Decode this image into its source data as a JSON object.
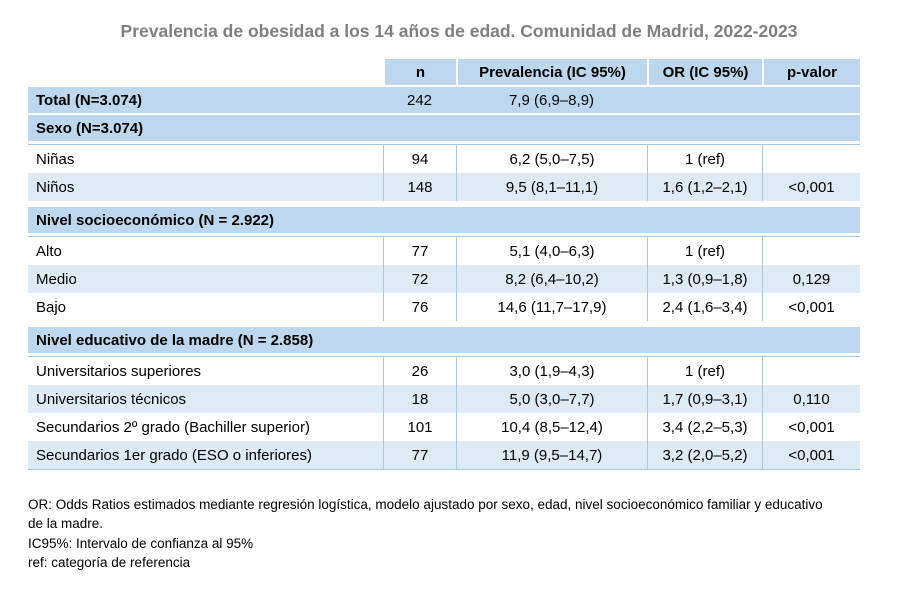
{
  "title": "Prevalencia de obesidad a los 14 años de edad. Comunidad de Madrid, 2022-2023",
  "chart_data": {
    "type": "table",
    "title": "Prevalencia de obesidad a los 14 años de edad. Comunidad de Madrid, 2022-2023",
    "columns": [
      "",
      "n",
      "Prevalencia (IC 95%)",
      "OR (IC 95%)",
      "p-valor"
    ],
    "rows": [
      {
        "type": "total",
        "label": "Total (N=3.074)",
        "n": "242",
        "prev": "7,9 (6,9–8,9)",
        "or": "",
        "p": ""
      },
      {
        "type": "section",
        "label": "Sexo (N=3.074)"
      },
      {
        "type": "data",
        "label": "Niñas",
        "n": "94",
        "prev": "6,2 (5,0–7,5)",
        "or": "1 (ref)",
        "p": ""
      },
      {
        "type": "data",
        "label": "Niños",
        "n": "148",
        "prev": "9,5 (8,1–11,1)",
        "or": "1,6 (1,2–2,1)",
        "p": "<0,001"
      },
      {
        "type": "section",
        "label": "Nivel socioeconómico (N = 2.922)"
      },
      {
        "type": "data",
        "label": "Alto",
        "n": "77",
        "prev": "5,1 (4,0–6,3)",
        "or": "1 (ref)",
        "p": ""
      },
      {
        "type": "data",
        "label": "Medio",
        "n": "72",
        "prev": "8,2 (6,4–10,2)",
        "or": "1,3 (0,9–1,8)",
        "p": "0,129"
      },
      {
        "type": "data",
        "label": "Bajo",
        "n": "76",
        "prev": "14,6 (11,7–17,9)",
        "or": "2,4 (1,6–3,4)",
        "p": "<0,001"
      },
      {
        "type": "section",
        "label": "Nivel educativo de la madre (N = 2.858)"
      },
      {
        "type": "data",
        "label": "Universitarios superiores",
        "n": "26",
        "prev": "3,0 (1,9–4,3)",
        "or": "1 (ref)",
        "p": ""
      },
      {
        "type": "data",
        "label": "Universitarios técnicos",
        "n": "18",
        "prev": "5,0 (3,0–7,7)",
        "or": "1,7 (0,9–3,1)",
        "p": "0,110"
      },
      {
        "type": "data",
        "label": "Secundarios 2º grado (Bachiller superior)",
        "n": "101",
        "prev": "10,4 (8,5–12,4)",
        "or": "3,4 (2,2–5,3)",
        "p": "<0,001"
      },
      {
        "type": "data",
        "label": "Secundarios 1er grado (ESO o inferiores)",
        "n": "77",
        "prev": "11,9 (9,5–14,7)",
        "or": "3,2 (2,0–5,2)",
        "p": "<0,001"
      }
    ]
  },
  "footnotes": [
    "OR: Odds Ratios estimados mediante regresión logística, modelo ajustado por sexo, edad, nivel socioeconómico familiar y educativo de la madre.",
    "IC95%: Intervalo de confianza al 95%",
    "ref: categoría de referencia"
  ],
  "colors": {
    "header_blue": "#bdd7ee",
    "stripe_blue": "#deeaf6",
    "divider_blue": "#a6c9e5",
    "title_gray": "#7f7f7f"
  }
}
